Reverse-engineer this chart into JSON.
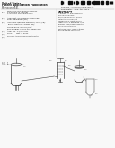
{
  "bg_color": "#f8f8f8",
  "barcode_color": "#111111",
  "text_color": "#333333",
  "gray": "#666666",
  "lightgray": "#999999",
  "diagram_color": "#444444",
  "line_color": "#aaaaaa",
  "header": {
    "title1": "United States",
    "title2": "Patent Application Publication",
    "title3": "Merceron et al.",
    "right1": "Pub. No.: US 2014/0275708 A1",
    "right2": "Pub. Date:   Sep. 18, 2014"
  },
  "left_fields": [
    [
      "(54)",
      "PROCESS FOR PRODUCTION OF\nC3 OLEFIN IN A FLUID\nCATALYTIC CRACKING UNIT",
      3
    ],
    [
      "(71)",
      "Applicant: IFP Energies nouvelles,\nRueil-Malmaison (FR)",
      2
    ],
    [
      "(72)",
      "Inventors: Baptiste Merceron, Lyon (FR);\nThierry Gauthier, Massy (FR);\nClaude Brun, Oullins (FR);\nEric Nougier, Charly-sur-Marne (FR)",
      4
    ],
    [
      "(21)",
      "Appl. No.: 14/201,201",
      1
    ],
    [
      "(22)",
      "Filed:       Mar. 7, 2014",
      1
    ],
    [
      "(30)",
      "Foreign Application Priority Data",
      1
    ],
    [
      "",
      "Mar. 8, 2013",
      1
    ]
  ],
  "abstract_title": "ABSTRACT",
  "abstract_text": "A process for the production of propylene from a hydrocarbon feed in a fluid catalytic cracking unit comprising a reactor and a regenerator is described. The process maximizes production of C3 olefins through optimized riser configurations and operating conditions.",
  "fig_label": "FIG. 1"
}
